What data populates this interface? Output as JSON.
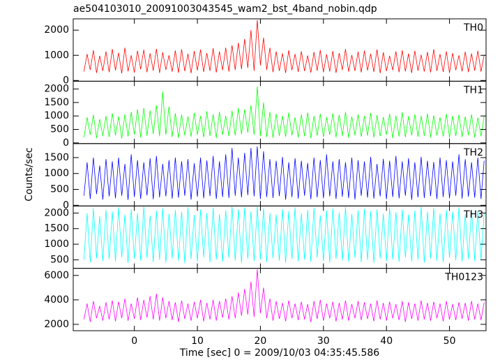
{
  "chart_data": {
    "type": "line",
    "title": "ae504103010_20091003043545_wam2_bst_4band_nobin.qdp",
    "xlabel": "Time [sec] 0 = 2009/10/03 04:35:45.586",
    "ylabel": "Counts/sec",
    "xlim": [
      -9.7,
      55.8
    ],
    "xticks": [
      0,
      10,
      20,
      30,
      40,
      50
    ],
    "x": [
      -8,
      -7.5,
      -7,
      -6.5,
      -6,
      -5.5,
      -5,
      -4.5,
      -4,
      -3.5,
      -3,
      -2.5,
      -2,
      -1.5,
      -1,
      -0.5,
      0,
      0.5,
      1,
      1.5,
      2,
      2.5,
      3,
      3.5,
      4,
      4.5,
      5,
      5.5,
      6,
      6.5,
      7,
      7.5,
      8,
      8.5,
      9,
      9.5,
      10,
      10.5,
      11,
      11.5,
      12,
      12.5,
      13,
      13.5,
      14,
      14.5,
      15,
      15.5,
      16,
      16.5,
      17,
      17.5,
      18,
      18.5,
      19,
      19.5,
      20,
      20.5,
      21,
      21.5,
      22,
      22.5,
      23,
      23.5,
      24,
      24.5,
      25,
      25.5,
      26,
      26.5,
      27,
      27.5,
      28,
      28.5,
      29,
      29.5,
      30,
      30.5,
      31,
      31.5,
      32,
      32.5,
      33,
      33.5,
      34,
      34.5,
      35,
      35.5,
      36,
      36.5,
      37,
      37.5,
      38,
      38.5,
      39,
      39.5,
      40,
      40.5,
      41,
      41.5,
      42,
      42.5,
      43,
      43.5,
      44,
      44.5,
      45,
      45.5,
      46,
      46.5,
      47,
      47.5,
      48,
      48.5,
      49,
      49.5,
      50,
      50.5,
      51,
      51.5,
      52,
      52.5,
      53,
      53.5,
      54,
      54.5,
      55,
      55.5
    ],
    "series": [
      {
        "name": "TH0",
        "color": "#ff0000",
        "ylim": [
          -30,
          2450
        ],
        "yticks": [
          0,
          1000,
          2000
        ],
        "values": [
          350,
          1050,
          420,
          1200,
          300,
          980,
          380,
          1150,
          330,
          1250,
          400,
          1100,
          280,
          1300,
          360,
          1000,
          310,
          1180,
          440,
          1220,
          330,
          1080,
          390,
          1260,
          300,
          1120,
          420,
          1000,
          350,
          1190,
          310,
          1240,
          370,
          1060,
          290,
          1170,
          400,
          1230,
          340,
          1090,
          380,
          1280,
          320,
          1150,
          410,
          1300,
          350,
          1400,
          420,
          1500,
          450,
          1650,
          500,
          2000,
          380,
          2400,
          600,
          1700,
          420,
          1300,
          330,
          1150,
          380,
          1080,
          300,
          1200,
          410,
          1050,
          340,
          1160,
          370,
          990,
          310,
          1130,
          390,
          1210,
          330,
          1040,
          360,
          1170,
          300,
          1090,
          420,
          1250,
          350,
          1010,
          380,
          1140,
          320,
          1190,
          400,
          1060,
          340,
          1230,
          290,
          1120,
          370,
          980,
          410,
          1150,
          330,
          1200,
          360,
          1070,
          300,
          1180,
          390,
          1020,
          350,
          1130,
          320,
          1240,
          380,
          1050,
          340,
          1160,
          300,
          1090,
          410,
          1000,
          360,
          1140,
          330,
          1070,
          390,
          1180,
          350,
          1020
        ]
      },
      {
        "name": "TH1",
        "color": "#00ff00",
        "ylim": [
          -25,
          2290
        ],
        "yticks": [
          0,
          500,
          1000,
          1500,
          2000
        ],
        "values": [
          200,
          950,
          300,
          1050,
          180,
          880,
          260,
          1000,
          220,
          1100,
          280,
          980,
          170,
          1060,
          240,
          1150,
          300,
          1250,
          200,
          1300,
          260,
          1200,
          330,
          1400,
          250,
          1900,
          300,
          1350,
          220,
          1100,
          190,
          1050,
          280,
          980,
          230,
          1120,
          300,
          1000,
          210,
          1180,
          260,
          1060,
          180,
          1150,
          300,
          1000,
          250,
          1200,
          280,
          1300,
          320,
          1250,
          380,
          1400,
          300,
          2100,
          250,
          1500,
          220,
          1150,
          190,
          1080,
          260,
          1000,
          230,
          1120,
          280,
          950,
          200,
          1050,
          250,
          1130,
          180,
          1000,
          270,
          1080,
          220,
          960,
          300,
          1100,
          210,
          1040,
          260,
          1150,
          190,
          980,
          280,
          1060,
          230,
          1000,
          270,
          1120,
          200,
          1030,
          250,
          960,
          300,
          1080,
          180,
          1010,
          240,
          1140,
          210,
          990,
          280,
          1060,
          230,
          1000,
          260,
          1090,
          200,
          1020,
          270,
          950,
          240,
          1080,
          190,
          1000,
          260,
          1050,
          220,
          980,
          280,
          1060,
          200,
          940,
          250,
          1000
        ]
      },
      {
        "name": "TH2",
        "color": "#0000ff",
        "ylim": [
          -20,
          1940
        ],
        "yticks": [
          0,
          500,
          1000,
          1500
        ],
        "values": [
          300,
          1350,
          200,
          1500,
          350,
          1250,
          180,
          1450,
          280,
          1380,
          220,
          1500,
          300,
          1300,
          170,
          1600,
          260,
          1420,
          200,
          1350,
          310,
          1480,
          190,
          1550,
          250,
          1300,
          280,
          1420,
          210,
          1500,
          240,
          1380,
          300,
          1450,
          180,
          1320,
          270,
          1500,
          220,
          1410,
          290,
          1550,
          200,
          1380,
          260,
          1600,
          230,
          1800,
          300,
          1500,
          250,
          1650,
          320,
          1800,
          280,
          1850,
          200,
          1700,
          260,
          1450,
          230,
          1400,
          290,
          1520,
          180,
          1350,
          260,
          1480,
          210,
          1400,
          300,
          1330,
          190,
          1500,
          250,
          1420,
          220,
          1600,
          280,
          1380,
          200,
          1450,
          270,
          1350,
          230,
          1500,
          180,
          1420,
          300,
          1380,
          240,
          1520,
          210,
          1300,
          280,
          1460,
          190,
          1400,
          260,
          1550,
          220,
          1380,
          300,
          1480,
          170,
          1350,
          250,
          1520,
          230,
          1400,
          290,
          1360,
          200,
          1500,
          260,
          1420,
          220,
          1380,
          300,
          1600,
          210,
          1450,
          270,
          1350,
          240,
          1500,
          200,
          1400
        ]
      },
      {
        "name": "TH3",
        "color": "#00ffff",
        "ylim": [
          227,
          2227
        ],
        "yticks": [
          500,
          1000,
          1500,
          2000
        ],
        "values": [
          500,
          2000,
          420,
          2150,
          550,
          1900,
          460,
          2100,
          520,
          2050,
          450,
          2180,
          580,
          1950,
          400,
          2120,
          530,
          2000,
          470,
          2200,
          560,
          1920,
          430,
          2080,
          500,
          2150,
          410,
          1980,
          540,
          2100,
          470,
          2050,
          390,
          2180,
          520,
          1940,
          450,
          2110,
          580,
          2000,
          420,
          2160,
          500,
          1960,
          440,
          2090,
          560,
          2200,
          480,
          2120,
          400,
          2180,
          530,
          2050,
          460,
          2200,
          510,
          2150,
          430,
          2000,
          550,
          1950,
          470,
          2130,
          410,
          2060,
          520,
          2180,
          450,
          1990,
          500,
          2100,
          430,
          2170,
          570,
          1930,
          460,
          2080,
          410,
          2150,
          530,
          2010,
          480,
          2190,
          440,
          1970,
          560,
          2090,
          420,
          2140,
          490,
          2060,
          400,
          2120,
          540,
          1980,
          460,
          2170,
          510,
          2030,
          430,
          2110,
          570,
          1950,
          450,
          2080,
          500,
          2200,
          410,
          2040,
          540,
          2160,
          470,
          1990,
          420,
          2100,
          560,
          2050,
          480,
          2180,
          440,
          1960,
          520,
          2120,
          460,
          2070,
          500,
          2010
        ]
      },
      {
        "name": "TH0123",
        "color": "#ff00ff",
        "ylim": [
          1480,
          6580
        ],
        "yticks": [
          2000,
          4000,
          6000
        ],
        "values": [
          2400,
          3700,
          2200,
          3900,
          2500,
          3500,
          2300,
          3800,
          2400,
          3950,
          2250,
          3850,
          2500,
          4100,
          2300,
          3700,
          2450,
          4200,
          2350,
          4000,
          2550,
          4300,
          2400,
          4500,
          2300,
          4200,
          2500,
          3900,
          2350,
          3800,
          2200,
          3950,
          2450,
          3700,
          2300,
          3850,
          2500,
          4000,
          2250,
          3750,
          2400,
          4000,
          2300,
          3900,
          2550,
          4100,
          2400,
          4300,
          2500,
          4600,
          2700,
          4900,
          2800,
          5500,
          2600,
          6500,
          2900,
          5000,
          2500,
          4100,
          2300,
          3900,
          2450,
          3750,
          2250,
          3950,
          2500,
          3700,
          2350,
          3850,
          2400,
          3650,
          2200,
          3900,
          2450,
          4000,
          2300,
          3700,
          2500,
          3850,
          2250,
          3750,
          2400,
          3950,
          2300,
          3650,
          2500,
          3900,
          2350,
          3800,
          2450,
          3700,
          2250,
          3950,
          2400,
          3750,
          2300,
          3850,
          2500,
          3650,
          2350,
          3900,
          2200,
          3800,
          2450,
          3700,
          2300,
          3950,
          2400,
          3750,
          2300,
          3850,
          2500,
          3700,
          2250,
          3900,
          2400,
          3650,
          2350,
          3800,
          2450,
          3750,
          2300,
          3900,
          2400,
          3700,
          2350,
          3800
        ]
      }
    ]
  }
}
